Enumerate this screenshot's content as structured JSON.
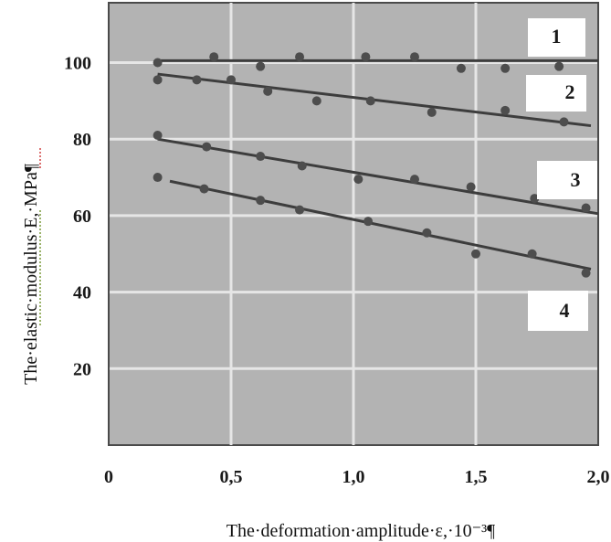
{
  "chart_data": {
    "type": "scatter",
    "xlabel": "The·deformation·amplitude·ε,·10⁻³¶",
    "ylabel": "The·elastic·modulus·E,·MPa¶",
    "x_ticks": [
      {
        "value": 0,
        "label": "0"
      },
      {
        "value": 0.5,
        "label": "0,5"
      },
      {
        "value": 1.0,
        "label": "1,0"
      },
      {
        "value": 1.5,
        "label": "1,5"
      },
      {
        "value": 2.0,
        "label": "2,0"
      }
    ],
    "y_ticks": [
      {
        "value": 20,
        "label": "20"
      },
      {
        "value": 40,
        "label": "40"
      },
      {
        "value": 60,
        "label": "60"
      },
      {
        "value": 80,
        "label": "80"
      },
      {
        "value": 100,
        "label": "100"
      }
    ],
    "xlim": [
      0,
      2.0
    ],
    "ylim": [
      0,
      112
    ],
    "grid": true,
    "series": [
      {
        "name": "1",
        "line": [
          [
            0.2,
            100.5
          ],
          [
            2.0,
            100.5
          ]
        ],
        "points": [
          [
            0.2,
            100
          ],
          [
            0.43,
            101.5
          ],
          [
            0.62,
            99
          ],
          [
            0.78,
            101.5
          ],
          [
            1.05,
            101.5
          ],
          [
            1.25,
            101.5
          ],
          [
            1.44,
            98.5
          ],
          [
            1.62,
            98.5
          ],
          [
            1.84,
            99
          ]
        ]
      },
      {
        "name": "2",
        "line": [
          [
            0.2,
            97
          ],
          [
            1.97,
            83.5
          ]
        ],
        "points": [
          [
            0.2,
            95.5
          ],
          [
            0.36,
            95.5
          ],
          [
            0.5,
            95.5
          ],
          [
            0.65,
            92.5
          ],
          [
            0.85,
            90
          ],
          [
            1.07,
            90
          ],
          [
            1.32,
            87
          ],
          [
            1.62,
            87.5
          ],
          [
            1.86,
            84.5
          ]
        ]
      },
      {
        "name": "3",
        "line": [
          [
            0.2,
            80
          ],
          [
            2.0,
            60.5
          ]
        ],
        "points": [
          [
            0.2,
            81
          ],
          [
            0.4,
            78
          ],
          [
            0.62,
            75.5
          ],
          [
            0.79,
            73
          ],
          [
            1.02,
            69.5
          ],
          [
            1.25,
            69.5
          ],
          [
            1.48,
            67.5
          ],
          [
            1.74,
            64.5
          ],
          [
            1.95,
            62
          ]
        ]
      },
      {
        "name": "4",
        "line": [
          [
            0.25,
            69
          ],
          [
            1.97,
            46
          ]
        ],
        "points": [
          [
            0.2,
            70
          ],
          [
            0.39,
            67
          ],
          [
            0.62,
            64
          ],
          [
            0.78,
            61.5
          ],
          [
            1.06,
            58.5
          ],
          [
            1.3,
            55.5
          ],
          [
            1.5,
            50
          ],
          [
            1.73,
            50
          ],
          [
            1.95,
            45
          ]
        ]
      }
    ]
  }
}
